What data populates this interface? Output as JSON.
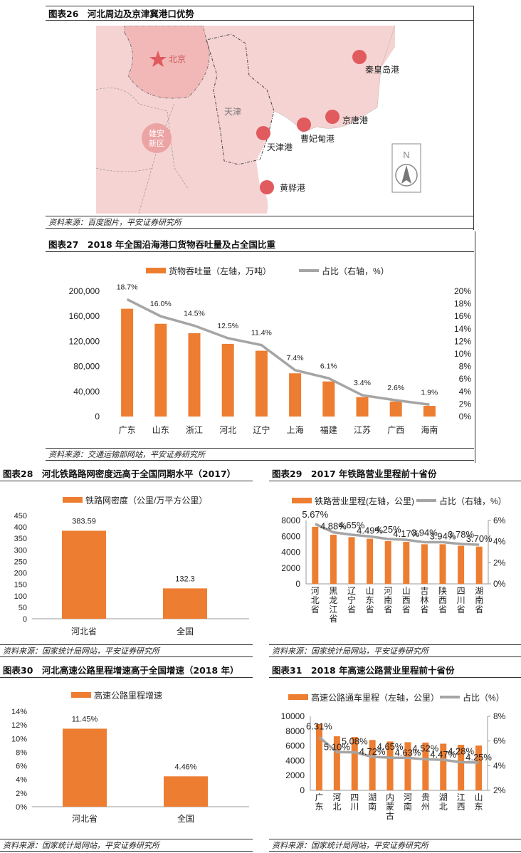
{
  "figure26": {
    "title": "图表26　河北周边及京津冀港口优势",
    "source": "资料来源：百度图片，平安证券研究所",
    "map_labels": {
      "beijing": "北京",
      "tianjin": "天津",
      "xiongan_1": "雄安",
      "xiongan_2": "新区",
      "compass": "N"
    },
    "ports": [
      "秦皇岛港",
      "京唐港",
      "曹妃甸港",
      "天津港",
      "黄骅港"
    ],
    "colors": {
      "land": "#f6d3d3",
      "beijing": "#f2b8b8",
      "port": "#e05a5e"
    }
  },
  "figure27": {
    "title": "图表27　2018 年全国沿海港口货物吞吐量及占全国比重",
    "source": "资料来源：交通运输部网站，平安证券研究所"
  },
  "figure28": {
    "title": "图表28　河北铁路路网密度远高于全国同期水平（2017）",
    "source": "资料来源：国家统计局网站，平安证券研究所"
  },
  "figure29": {
    "title": "图表29　2017 年铁路营业里程前十省份",
    "source": "资料来源：国家统计局网站，平安证券研究所"
  },
  "figure30": {
    "title": "图表30　河北高速公路里程增速高于全国增速（2018 年）",
    "source": "资料来源：国家统计局网站，平安证券研究所"
  },
  "figure31": {
    "title": "图表31　2018 年高速公路营业里程前十省份",
    "source": "资料来源：国家统计局网站，平安证券研究所"
  },
  "colors": {
    "bar": "#ed7d31",
    "line": "#a5a5a5"
  },
  "chart_data": [
    {
      "id": "c27",
      "type": "bar",
      "title": "2018 年全国沿海港口货物吞吐量及占全国比重",
      "categories": [
        "广东",
        "山东",
        "浙江",
        "河北",
        "辽宁",
        "上海",
        "福建",
        "江苏",
        "广西",
        "海南"
      ],
      "series": [
        {
          "name": "货物吞吐量（左轴，万吨）",
          "type": "bar",
          "axis": "left",
          "values": [
            172000,
            148000,
            133000,
            116000,
            105000,
            69000,
            56000,
            31000,
            24000,
            17000
          ]
        },
        {
          "name": "占比（右轴，%）",
          "type": "line",
          "axis": "right",
          "values": [
            18.7,
            16.0,
            14.5,
            12.5,
            11.4,
            7.4,
            6.1,
            3.4,
            2.6,
            1.9
          ],
          "labels": [
            "18.7%",
            "16.0%",
            "14.5%",
            "12.5%",
            "11.4%",
            "7.4%",
            "6.1%",
            "3.4%",
            "2.6%",
            "1.9%"
          ]
        }
      ],
      "ylim": [
        0,
        200000
      ],
      "yticks": [
        "0",
        "40,000",
        "80,000",
        "120,000",
        "160,000",
        "200,000"
      ],
      "y2lim": [
        0,
        20
      ],
      "y2ticks": [
        "0%",
        "2%",
        "4%",
        "6%",
        "8%",
        "10%",
        "12%",
        "14%",
        "16%",
        "18%",
        "20%"
      ],
      "legend": "top"
    },
    {
      "id": "c28",
      "type": "bar",
      "categories": [
        "河北省",
        "全国"
      ],
      "series": [
        {
          "name": "铁路网密度（公里/万平方公里）",
          "type": "bar",
          "axis": "left",
          "values": [
            383.59,
            132.3
          ],
          "labels": [
            "383.59",
            "132.3"
          ]
        }
      ],
      "ylim": [
        0,
        450
      ],
      "yticks": [
        "0",
        "50",
        "100",
        "150",
        "200",
        "250",
        "300",
        "350",
        "400",
        "450"
      ],
      "legend": "top"
    },
    {
      "id": "c29",
      "type": "bar",
      "categories": [
        "河北省",
        "黑龙江省",
        "辽宁省",
        "山东省",
        "河南省",
        "山西省",
        "吉林省",
        "陕西省",
        "四川省",
        "湖南省"
      ],
      "series": [
        {
          "name": "铁路营业里程(左轴，公里)",
          "type": "bar",
          "axis": "left",
          "values": [
            7200,
            6200,
            5900,
            5700,
            5400,
            5300,
            5000,
            5000,
            4800,
            4700
          ]
        },
        {
          "name": "占比（右轴，%）",
          "type": "line",
          "axis": "right",
          "values": [
            5.67,
            4.88,
            4.65,
            4.49,
            4.25,
            4.17,
            3.94,
            3.94,
            3.78,
            3.7
          ],
          "labels": [
            "5.67%",
            "4.88%",
            "4.65%",
            "4.49%",
            "4.25%",
            "4.17%",
            "3.94%",
            "3.94%",
            "3.78%",
            "3.70%"
          ]
        }
      ],
      "ylim": [
        0,
        8000
      ],
      "yticks": [
        "0",
        "2000",
        "4000",
        "6000",
        "8000"
      ],
      "y2lim": [
        0,
        6
      ],
      "y2ticks": [
        "0%",
        "2%",
        "4%",
        "6%"
      ],
      "legend": "top"
    },
    {
      "id": "c30",
      "type": "bar",
      "categories": [
        "河北省",
        "全国"
      ],
      "series": [
        {
          "name": "高速公路里程增速",
          "type": "bar",
          "axis": "left",
          "values": [
            11.45,
            4.46
          ],
          "labels": [
            "11.45%",
            "4.46%"
          ]
        }
      ],
      "ylim": [
        0,
        14
      ],
      "yticks": [
        "0%",
        "2%",
        "4%",
        "6%",
        "8%",
        "10%",
        "12%",
        "14%"
      ],
      "legend": "top"
    },
    {
      "id": "c31",
      "type": "bar",
      "categories": [
        "广东",
        "河北",
        "四川",
        "湖南",
        "内蒙古",
        "河南",
        "贵州",
        "湖北",
        "江西",
        "山东"
      ],
      "series": [
        {
          "name": "高速公路通车里程（左轴，公里）",
          "type": "bar",
          "axis": "left",
          "values": [
            8950,
            7300,
            7200,
            6800,
            6600,
            6500,
            6450,
            6300,
            6150,
            6050
          ]
        },
        {
          "name": "占比（%）",
          "type": "line",
          "axis": "right",
          "values": [
            6.31,
            5.1,
            5.08,
            4.72,
            4.65,
            4.63,
            4.52,
            4.47,
            4.28,
            4.25
          ],
          "labels": [
            "6.31%",
            "5.10%",
            "5.08%",
            "4.72%",
            "4.65%",
            "4.63%",
            "4.52%",
            "4.47%",
            "4.28%",
            "4.25%"
          ]
        }
      ],
      "ylim": [
        0,
        10000
      ],
      "yticks": [
        "0",
        "2000",
        "4000",
        "6000",
        "8000",
        "10000"
      ],
      "y2lim": [
        2,
        8
      ],
      "y2ticks": [
        "2%",
        "4%",
        "6%",
        "8%"
      ],
      "legend": "top"
    }
  ]
}
